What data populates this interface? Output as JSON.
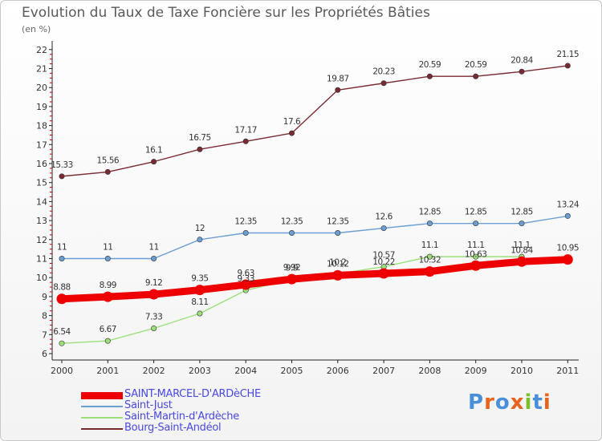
{
  "header": {
    "title": "Evolution du Taux de Taxe Foncière sur les Propriétés Bâties",
    "unit": "(en %)"
  },
  "logo": {
    "text": "Proxiti",
    "colors": [
      "#4a90d9",
      "#e8641e",
      "#4a90d9",
      "#e8641e",
      "#7bbf2a",
      "#4a90d9",
      "#e8641e"
    ]
  },
  "chart_data": {
    "type": "line",
    "title": "Evolution du Taux de Taxe Foncière sur les Propriétés Bâties",
    "ylabel": "(en %)",
    "xlabel": "",
    "categories": [
      "2000",
      "2001",
      "2002",
      "2003",
      "2004",
      "2005",
      "2006",
      "2007",
      "2008",
      "2009",
      "2010",
      "2011"
    ],
    "ylim": [
      6,
      22
    ],
    "yticks": [
      "6",
      "7",
      "8",
      "9",
      "10",
      "11",
      "12",
      "13",
      "14",
      "15",
      "16",
      "17",
      "18",
      "19",
      "20",
      "21",
      "22"
    ],
    "grid": false,
    "series": [
      {
        "name": "SAINT-MARCEL-D'ARDèCHE",
        "color": "#ee0000",
        "style": "thick",
        "values": [
          8.88,
          8.99,
          9.12,
          9.35,
          9.63,
          9.92,
          10.12,
          10.22,
          10.32,
          10.63,
          10.84,
          10.95
        ],
        "labels": [
          "8.88",
          "8.99",
          "9.12",
          "9.35",
          "9.63",
          "9.92",
          "10.12",
          "10.22",
          "10.32",
          "10.63",
          "10.84",
          "10.95"
        ]
      },
      {
        "name": "Saint-Just",
        "color": "#6b9fd4",
        "style": "thin",
        "values": [
          11,
          11,
          11,
          12,
          12.35,
          12.35,
          12.35,
          12.6,
          12.85,
          12.85,
          12.85,
          13.24
        ],
        "labels": [
          "11",
          "11",
          "11",
          "12",
          "12.35",
          "12.35",
          "12.35",
          "12.6",
          "12.85",
          "12.85",
          "12.85",
          "13.24"
        ]
      },
      {
        "name": "Saint-Martin-d'Ardèche",
        "color": "#9be07a",
        "style": "thin",
        "values": [
          6.54,
          6.67,
          7.33,
          8.11,
          9.33,
          9.9,
          10.2,
          10.57,
          11.1,
          11.1,
          11.1,
          null
        ],
        "labels": [
          "6.54",
          "6.67",
          "7.33",
          "8.11",
          "9.33",
          "9.9",
          "10.2",
          "10.57",
          "11.1",
          "11.1",
          "11.1",
          ""
        ]
      },
      {
        "name": "Bourg-Saint-Andéol",
        "color": "#7a2a30",
        "style": "thin",
        "values": [
          15.33,
          15.56,
          16.1,
          16.75,
          17.17,
          17.6,
          19.87,
          20.23,
          20.59,
          20.59,
          20.84,
          21.15
        ],
        "labels": [
          "15.33",
          "15.56",
          "16.1",
          "16.75",
          "17.17",
          "17.6",
          "19.87",
          "20.23",
          "20.59",
          "20.59",
          "20.84",
          "21.15"
        ]
      }
    ]
  }
}
